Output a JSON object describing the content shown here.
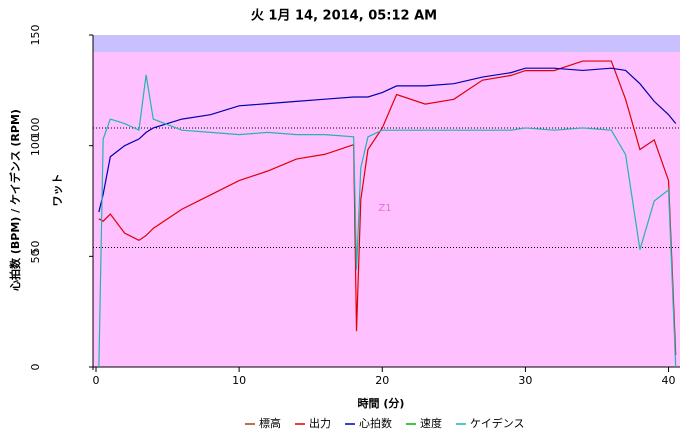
{
  "chart_data": {
    "type": "line",
    "title": "火 1月 14, 2014, 05:12 AM",
    "x_label": "時間 (分)",
    "y_label": "心拍数 (BPM) / ケイデンス (RPM)",
    "y2_label": "ワット",
    "annotation": "Z1",
    "x": [
      0.2,
      0.5,
      1,
      2,
      3,
      3.5,
      4,
      6,
      8,
      10,
      12,
      14,
      16,
      18,
      18.2,
      18.5,
      19,
      20,
      21,
      23,
      25,
      27,
      29,
      30,
      32,
      34,
      36,
      37,
      38,
      39,
      40,
      40.5
    ],
    "xlim": [
      0,
      40.8
    ],
    "xticks": [
      0,
      10,
      20,
      30,
      40
    ],
    "ylim": [
      0,
      150
    ],
    "yticks": [
      0,
      50,
      100,
      150
    ],
    "y2lim": [
      0,
      138.9
    ],
    "y2ticks": [
      50,
      100
    ],
    "series": [
      {
        "name": "標高",
        "color": "#a0401a",
        "values": [
          null,
          null,
          null,
          null,
          null,
          null,
          null,
          null,
          null,
          null,
          null,
          null,
          null,
          null,
          null,
          null,
          null,
          null,
          null,
          null,
          null,
          null,
          null,
          null,
          null,
          null,
          null,
          null,
          null,
          null,
          null,
          null
        ]
      },
      {
        "name": "出力",
        "color": "#e00000",
        "axis": "y2",
        "values": [
          62,
          61,
          64,
          56,
          53,
          55,
          58,
          66,
          72,
          78,
          82,
          87,
          89,
          93,
          15,
          70,
          91,
          100,
          114,
          110,
          112,
          120,
          122,
          124,
          124,
          128,
          128,
          112,
          91,
          95,
          78,
          5
        ]
      },
      {
        "name": "心拍数",
        "color": "#0000b0",
        "values": [
          70,
          78,
          95,
          100,
          103,
          106,
          108,
          112,
          114,
          118,
          119,
          120,
          121,
          122,
          122,
          122,
          122,
          124,
          127,
          127,
          128,
          131,
          133,
          135,
          135,
          134,
          135,
          134,
          128,
          120,
          114,
          110
        ]
      },
      {
        "name": "速度",
        "color": "#00b000",
        "values": [
          null,
          null,
          null,
          null,
          null,
          null,
          null,
          null,
          null,
          null,
          null,
          null,
          null,
          null,
          null,
          null,
          null,
          null,
          null,
          null,
          null,
          null,
          null,
          null,
          null,
          null,
          null,
          null,
          null,
          null,
          null,
          null
        ]
      },
      {
        "name": "ケイデンス",
        "color": "#20b4b4",
        "values": [
          0,
          103,
          112,
          110,
          107,
          132,
          112,
          107,
          106,
          105,
          106,
          105,
          105,
          104,
          44,
          90,
          104,
          107,
          107,
          107,
          107,
          107,
          107,
          108,
          107,
          108,
          107,
          96,
          53,
          75,
          80,
          0
        ]
      }
    ]
  }
}
